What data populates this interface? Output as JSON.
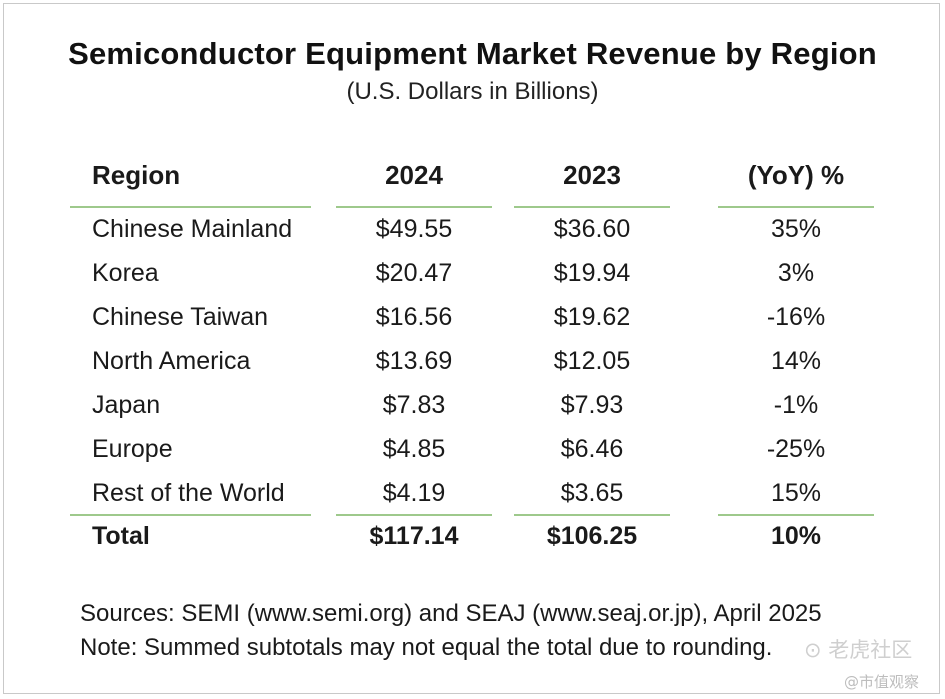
{
  "chart_data": {
    "type": "table",
    "title": "Semiconductor Equipment Market Revenue by Region",
    "subtitle": "(U.S. Dollars in Billions)",
    "columns": [
      "Region",
      "2024",
      "2023",
      "(YoY) %"
    ],
    "rows": [
      {
        "region": "Chinese Mainland",
        "y2024": "$49.55",
        "y2023": "$36.60",
        "yoy": "35%"
      },
      {
        "region": "Korea",
        "y2024": "$20.47",
        "y2023": "$19.94",
        "yoy": "3%"
      },
      {
        "region": "Chinese Taiwan",
        "y2024": "$16.56",
        "y2023": "$19.62",
        "yoy": "-16%"
      },
      {
        "region": "North America",
        "y2024": "$13.69",
        "y2023": "$12.05",
        "yoy": "14%"
      },
      {
        "region": "Japan",
        "y2024": "$7.83",
        "y2023": "$7.93",
        "yoy": "-1%"
      },
      {
        "region": "Europe",
        "y2024": "$4.85",
        "y2023": "$6.46",
        "yoy": "-25%"
      },
      {
        "region": "Rest of the World",
        "y2024": "$4.19",
        "y2023": "$3.65",
        "yoy": "15%"
      }
    ],
    "total": {
      "region": "Total",
      "y2024": "$117.14",
      "y2023": "$106.25",
      "yoy": "10%"
    },
    "sources": "Sources: SEMI (www.semi.org) and SEAJ (www.seaj.or.jp), April 2025",
    "note": "Note: Summed subtotals may not equal the total due to rounding."
  },
  "watermark": {
    "line1": "⊙ 老虎社区",
    "line2": "@市值观察"
  }
}
